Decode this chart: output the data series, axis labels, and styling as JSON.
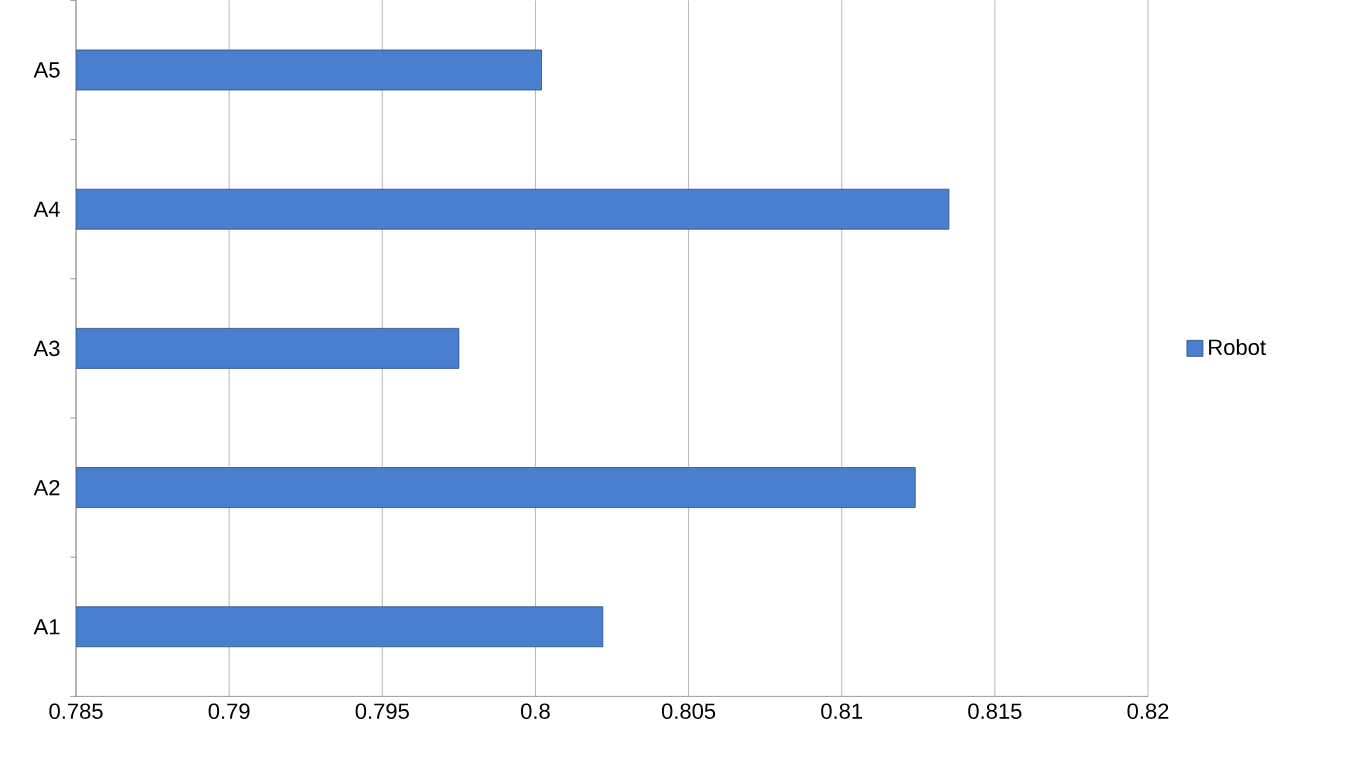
{
  "chart_data": {
    "type": "bar",
    "orientation": "horizontal",
    "categories": [
      "A5",
      "A4",
      "A3",
      "A2",
      "A1"
    ],
    "series": [
      {
        "name": "Robot",
        "color": "#4a7fd0",
        "values": [
          0.8002,
          0.8135,
          0.7975,
          0.8124,
          0.8022
        ]
      }
    ],
    "xlim": [
      0.785,
      0.82
    ],
    "xticks": [
      0.785,
      0.79,
      0.795,
      0.8,
      0.805,
      0.81,
      0.815,
      0.82
    ],
    "grid": "x",
    "legend": "right"
  }
}
